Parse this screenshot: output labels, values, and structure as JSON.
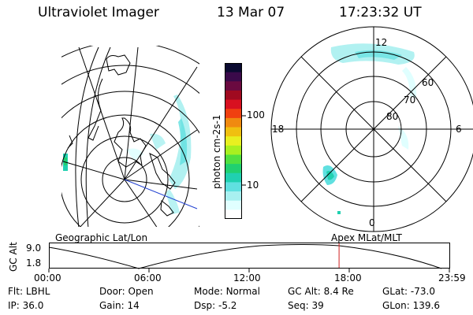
{
  "header": {
    "instrument": "Ultraviolet Imager",
    "date": "13 Mar 07",
    "time": "17:23:32 UT"
  },
  "colorbar": {
    "unit_label": "photon cm-2s-1",
    "ticks": [
      "100",
      "10"
    ],
    "colors": [
      "#0a0a30",
      "#3a0a4a",
      "#6a0a40",
      "#a00a20",
      "#d81020",
      "#f04010",
      "#f08a10",
      "#f0c010",
      "#e8f020",
      "#a8f020",
      "#50e040",
      "#20d070",
      "#20d0b0",
      "#60e0e0",
      "#a8f0f0",
      "#e0ffff",
      "#ffffff"
    ]
  },
  "left_map": {
    "label": "Geographic Lat/Lon"
  },
  "right_map": {
    "label": "Apex MLat/MLT",
    "mlt_labels": {
      "top": "12",
      "left": "18",
      "right": "6",
      "bottom": "0"
    },
    "lat_labels": [
      "60",
      "70",
      "80"
    ]
  },
  "timeline": {
    "ylabel": "GC Alt",
    "ymax": "9.0",
    "ymin": "1.8",
    "xticks": [
      "00:00",
      "06:00",
      "12:00",
      "18:00",
      "23:59"
    ],
    "current_marker_hour": 17.39
  },
  "info": {
    "row1": [
      {
        "k": "Flt:",
        "v": "LBHL"
      },
      {
        "k": "Door:",
        "v": "Open"
      },
      {
        "k": "Mode:",
        "v": "Normal"
      },
      {
        "k": "GC Alt:",
        "v": "8.4 Re"
      },
      {
        "k": "GLat:",
        "v": "-73.0"
      }
    ],
    "row2": [
      {
        "k": "IP:",
        "v": "36.0"
      },
      {
        "k": "Gain:",
        "v": "14"
      },
      {
        "k": "Dsp:",
        "v": "-5.2"
      },
      {
        "k": "Seq:",
        "v": "39"
      },
      {
        "k": "GLon:",
        "v": "139.6"
      }
    ]
  }
}
